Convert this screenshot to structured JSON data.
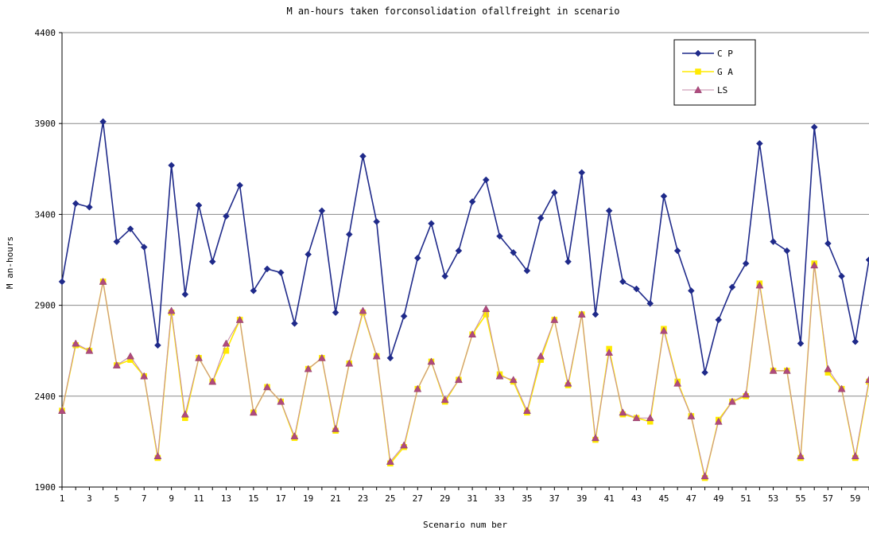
{
  "chart_data": {
    "type": "line",
    "title": "M an-hours  taken  forconsolidation  ofallfreight in  scenario",
    "xlabel": "Scenario  num ber",
    "ylabel": "M an-hours",
    "ylim": [
      1900,
      4400
    ],
    "yticks": [
      1900,
      2400,
      2900,
      3400,
      3900,
      4400
    ],
    "xlim": [
      1,
      60
    ],
    "xticks": [
      1,
      3,
      5,
      7,
      9,
      11,
      13,
      15,
      17,
      19,
      21,
      23,
      25,
      27,
      29,
      31,
      33,
      35,
      37,
      39,
      41,
      43,
      45,
      47,
      49,
      51,
      53,
      55,
      57,
      59
    ],
    "grid": "horizontal",
    "legend_position": "top-right",
    "x": [
      1,
      2,
      3,
      4,
      5,
      6,
      7,
      8,
      9,
      10,
      11,
      12,
      13,
      14,
      15,
      16,
      17,
      18,
      19,
      20,
      21,
      22,
      23,
      24,
      25,
      26,
      27,
      28,
      29,
      30,
      31,
      32,
      33,
      34,
      35,
      36,
      37,
      38,
      39,
      40,
      41,
      42,
      43,
      44,
      45,
      46,
      47,
      48,
      49,
      50,
      51,
      52,
      53,
      54,
      55,
      56,
      57,
      58,
      59,
      60
    ],
    "series": [
      {
        "name": "C P",
        "color": "#1f2a8a",
        "marker": "diamond",
        "values": [
          3030,
          3460,
          3440,
          3910,
          3250,
          3320,
          3220,
          2680,
          3670,
          2960,
          3450,
          3140,
          3390,
          3560,
          2980,
          3100,
          3080,
          2800,
          3180,
          3420,
          2860,
          3290,
          3720,
          3360,
          2610,
          2840,
          3160,
          3350,
          3060,
          3200,
          3470,
          3590,
          3280,
          3190,
          3090,
          3380,
          3520,
          3140,
          3630,
          2850,
          3420,
          3030,
          2990,
          2910,
          3500,
          3200,
          2980,
          2530,
          2820,
          3000,
          3130,
          3790,
          3250,
          3200,
          2690,
          3880,
          3240,
          3060,
          2700,
          3150
        ]
      },
      {
        "name": "G A",
        "color": "#ffea00",
        "marker": "square",
        "values": [
          2320,
          2680,
          2650,
          3030,
          2570,
          2600,
          2510,
          2060,
          2860,
          2280,
          2610,
          2480,
          2650,
          2820,
          2310,
          2450,
          2370,
          2170,
          2550,
          2610,
          2210,
          2580,
          2860,
          2620,
          2030,
          2120,
          2440,
          2590,
          2370,
          2490,
          2740,
          2850,
          2520,
          2480,
          2310,
          2600,
          2820,
          2460,
          2850,
          2160,
          2660,
          2300,
          2280,
          2260,
          2770,
          2480,
          2290,
          1950,
          2270,
          2370,
          2400,
          3020,
          2540,
          2540,
          2060,
          3130,
          2530,
          2440,
          2060,
          2480
        ]
      },
      {
        "name": "LS",
        "color": "#b04a7e",
        "marker": "triangle",
        "values": [
          2320,
          2690,
          2650,
          3030,
          2570,
          2620,
          2510,
          2070,
          2870,
          2300,
          2610,
          2480,
          2690,
          2820,
          2310,
          2450,
          2370,
          2180,
          2550,
          2610,
          2220,
          2580,
          2870,
          2620,
          2040,
          2130,
          2440,
          2590,
          2380,
          2490,
          2740,
          2880,
          2510,
          2490,
          2320,
          2620,
          2820,
          2470,
          2850,
          2170,
          2640,
          2310,
          2280,
          2280,
          2760,
          2470,
          2290,
          1960,
          2260,
          2370,
          2410,
          3010,
          2540,
          2540,
          2070,
          3120,
          2550,
          2440,
          2070,
          2490
        ]
      }
    ]
  }
}
